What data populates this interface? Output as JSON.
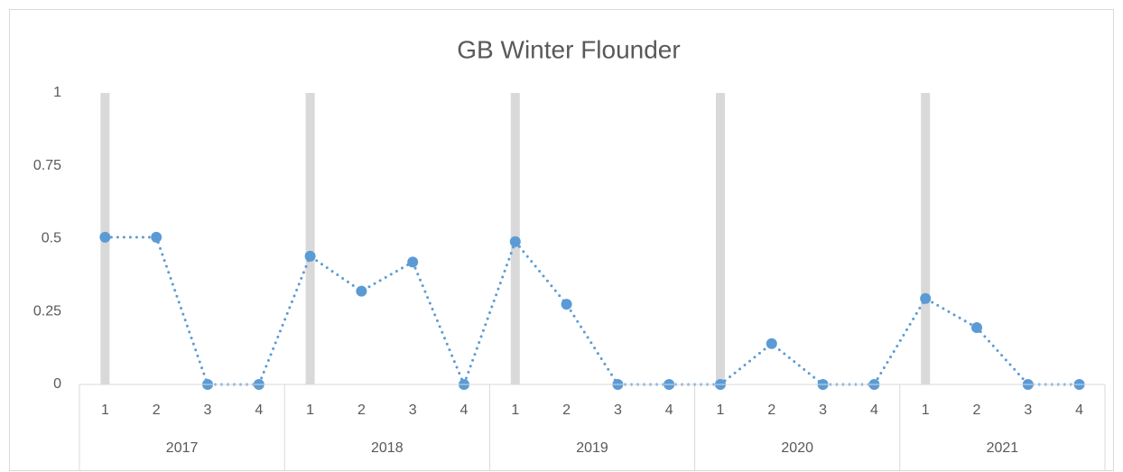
{
  "chart_data": {
    "type": "line",
    "title": "GB Winter Flounder",
    "categories": [
      "1",
      "2",
      "3",
      "4",
      "1",
      "2",
      "3",
      "4",
      "1",
      "2",
      "3",
      "4",
      "1",
      "2",
      "3",
      "4",
      "1",
      "2",
      "3",
      "4"
    ],
    "category_groups": [
      "2017",
      "2018",
      "2019",
      "2020",
      "2021"
    ],
    "series": [
      {
        "color": "#d9d9d9",
        "style": "column",
        "values": [
          1,
          null,
          null,
          null,
          1,
          null,
          null,
          null,
          1,
          null,
          null,
          null,
          1,
          null,
          null,
          null,
          1,
          null,
          null,
          null
        ]
      },
      {
        "color": "#5b9bd5",
        "style": "dotted-line",
        "values": [
          0.505,
          0.505,
          0,
          0,
          0.44,
          0.32,
          0.42,
          0,
          0.49,
          0.275,
          0,
          0,
          0,
          0.14,
          0,
          0,
          0.295,
          0.195,
          0,
          0
        ]
      }
    ],
    "ylim": [
      0,
      1
    ],
    "yticks": [
      0,
      0.25,
      0.5,
      0.75,
      1
    ],
    "grid": false
  }
}
